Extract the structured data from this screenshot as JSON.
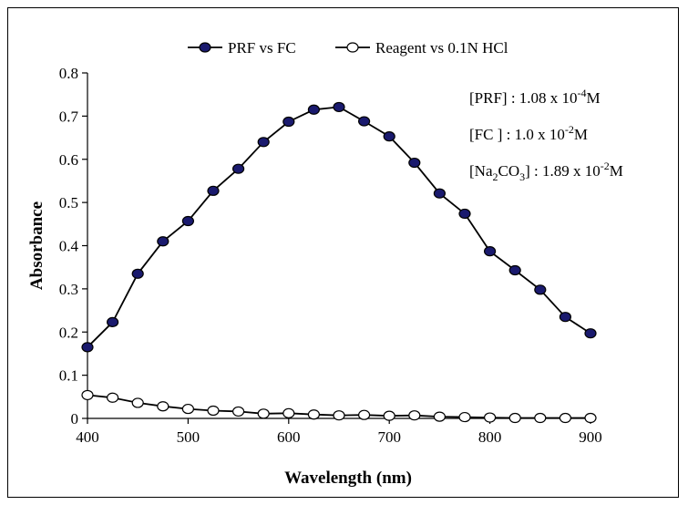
{
  "chart_data": {
    "type": "line",
    "xlabel": "Wavelength (nm)",
    "ylabel": "Absorbance",
    "xlim": [
      400,
      900
    ],
    "ylim": [
      0,
      0.8
    ],
    "x_ticks": [
      "400",
      "500",
      "600",
      "700",
      "800",
      "900"
    ],
    "y_ticks": [
      "0",
      "0.1",
      "0.2",
      "0.3",
      "0.4",
      "0.5",
      "0.6",
      "0.7",
      "0.8"
    ],
    "grid": false,
    "legend_position": "top",
    "x": [
      400,
      425,
      450,
      475,
      500,
      525,
      550,
      575,
      600,
      625,
      650,
      675,
      700,
      725,
      750,
      775,
      800,
      825,
      850,
      875,
      900
    ],
    "series": [
      {
        "name": "PRF vs FC",
        "marker": "filled-circle",
        "color": "#1a1a6e",
        "values": [
          0.165,
          0.223,
          0.335,
          0.41,
          0.457,
          0.527,
          0.578,
          0.64,
          0.687,
          0.715,
          0.721,
          0.688,
          0.653,
          0.592,
          0.521,
          0.474,
          0.387,
          0.343,
          0.298,
          0.235,
          0.197
        ]
      },
      {
        "name": "Reagent vs 0.1N HCl",
        "marker": "open-circle",
        "color": "#ffffff",
        "values": [
          0.054,
          0.048,
          0.036,
          0.028,
          0.022,
          0.018,
          0.016,
          0.011,
          0.012,
          0.009,
          0.007,
          0.008,
          0.006,
          0.007,
          0.004,
          0.003,
          0.002,
          0.001,
          0.001,
          0.001,
          0.001
        ]
      }
    ],
    "annotations": [
      {
        "parts": [
          "[PRF] : 1.08 x 10",
          "-4",
          "M"
        ],
        "kinds": [
          "n",
          "sup",
          "n"
        ]
      },
      {
        "parts": [
          "[FC ] : 1.0 x 10",
          "-2",
          "M"
        ],
        "kinds": [
          "n",
          "sup",
          "n"
        ]
      },
      {
        "parts": [
          "[Na",
          "2",
          "CO",
          "3",
          "] : 1.89 x 10",
          "-2",
          "M"
        ],
        "kinds": [
          "n",
          "sub",
          "n",
          "sub",
          "n",
          "sup",
          "n"
        ]
      }
    ]
  }
}
